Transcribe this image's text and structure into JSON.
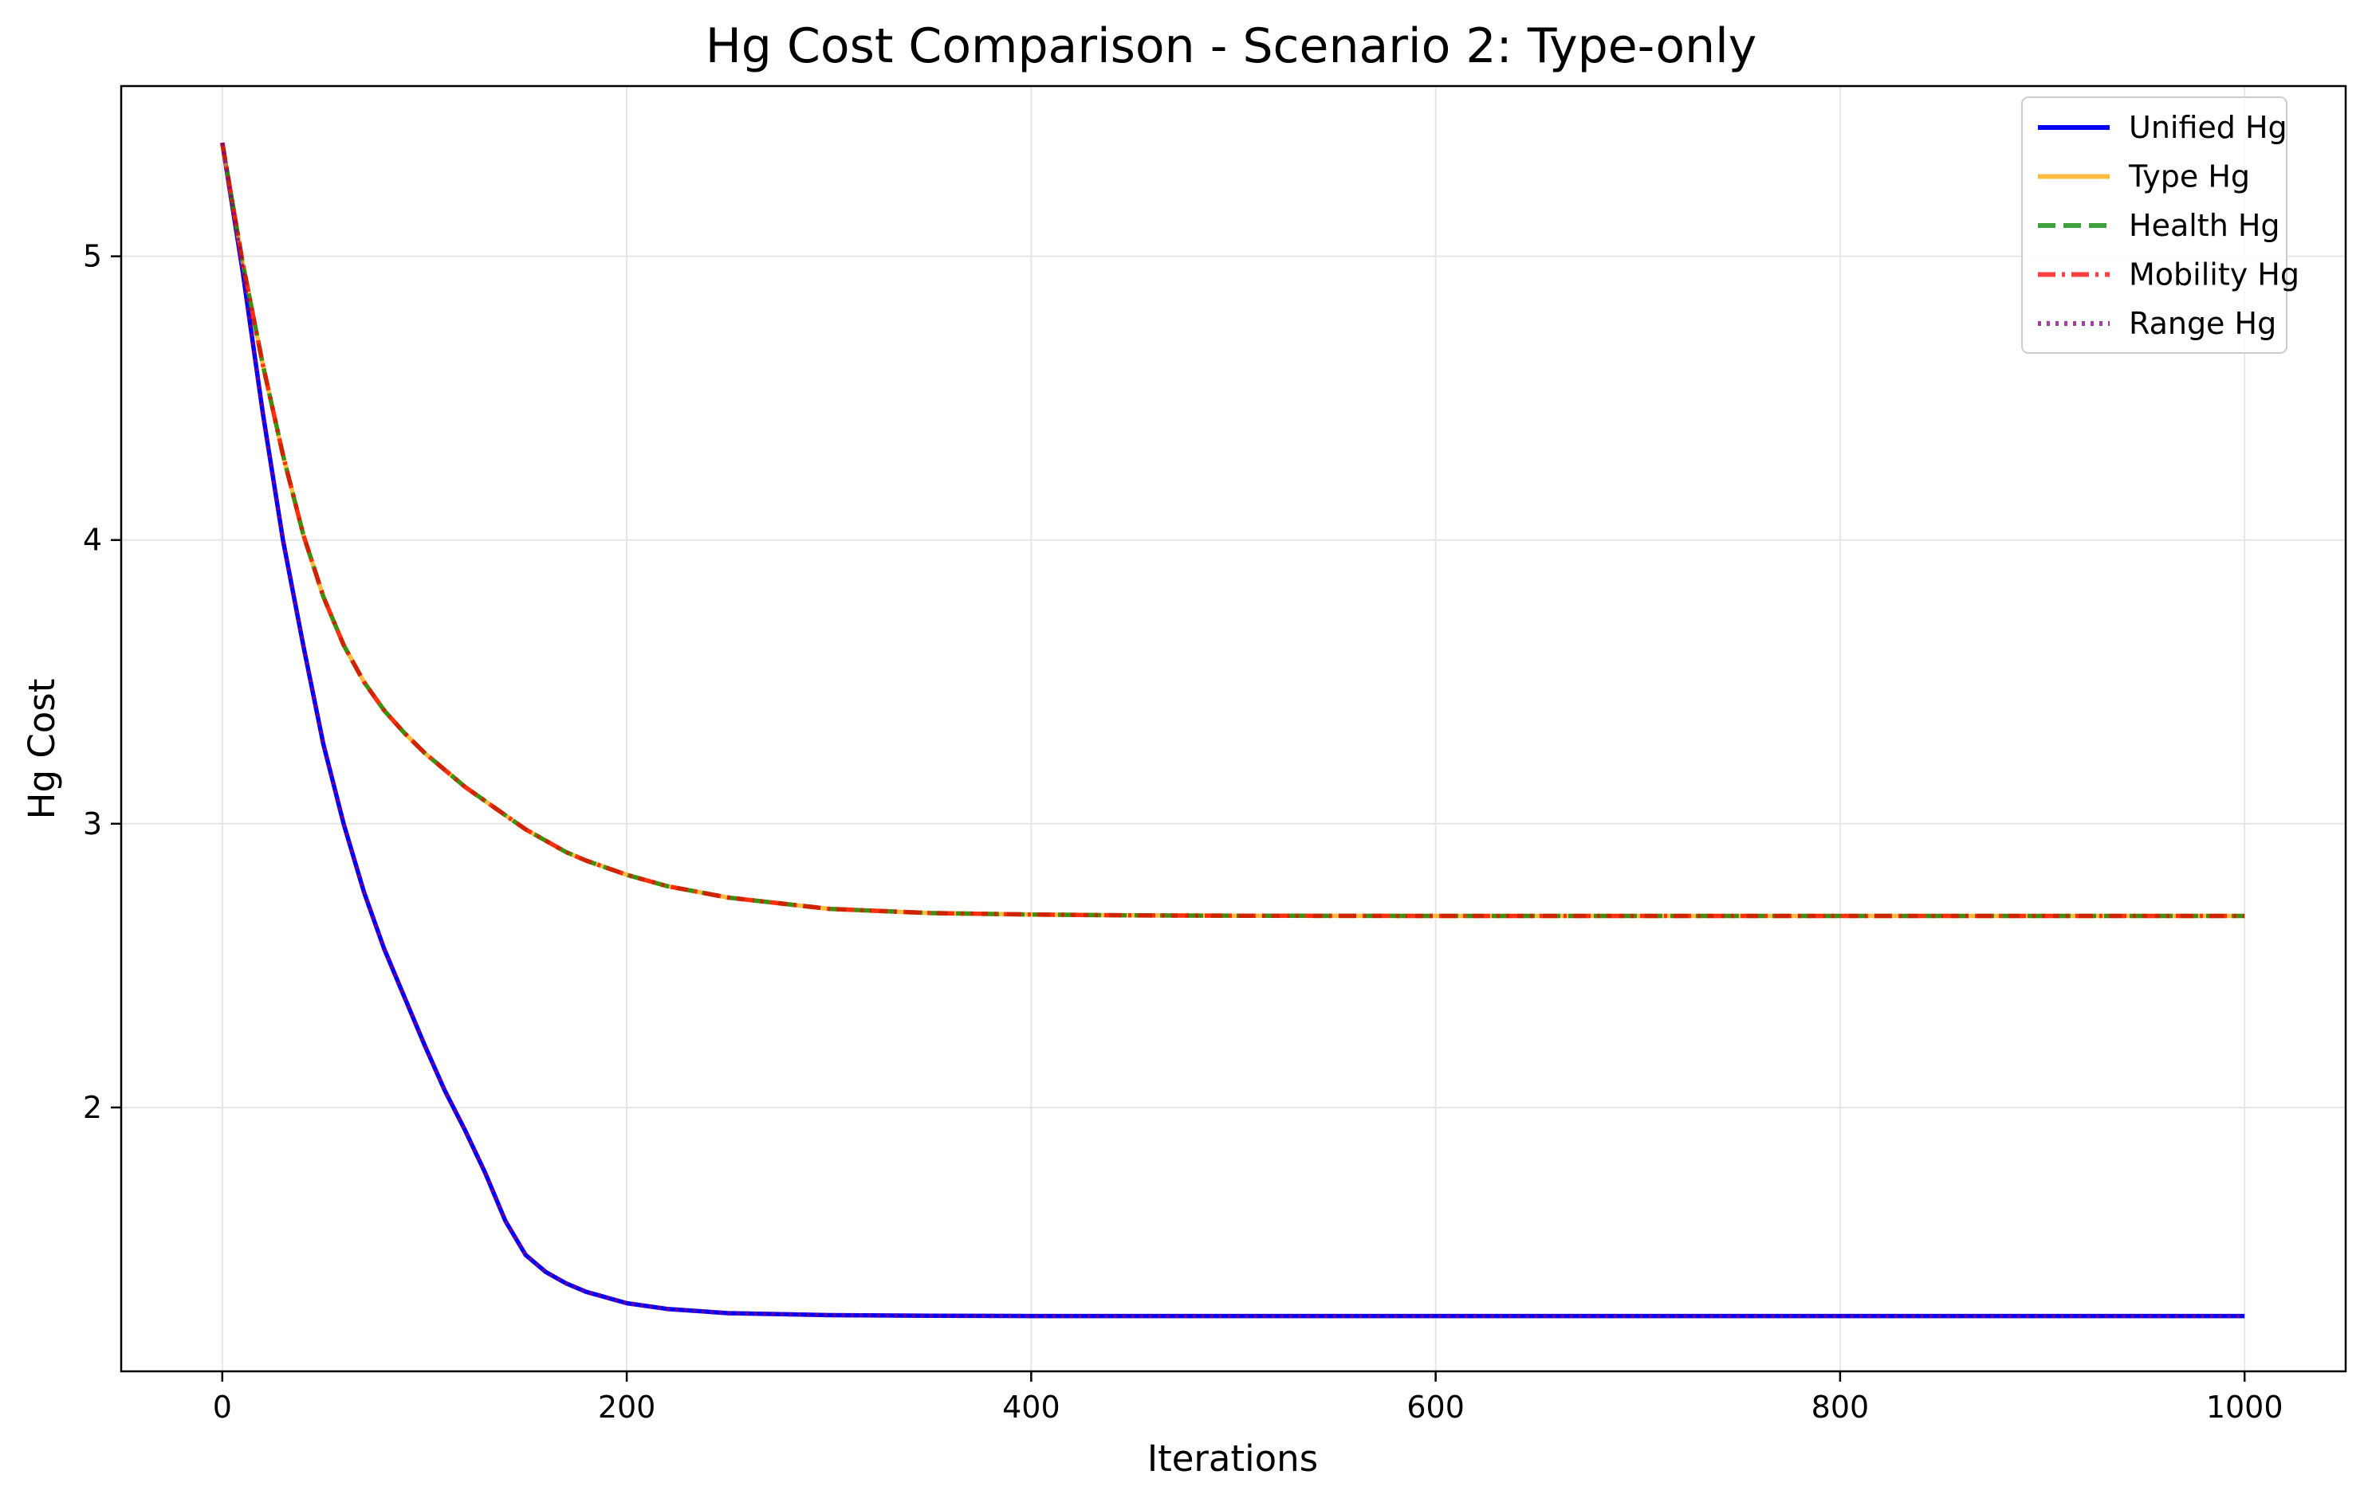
{
  "chart_data": {
    "type": "line",
    "title": "Hg Cost Comparison - Scenario 2: Type-only",
    "xlabel": "Iterations",
    "ylabel": "Hg Cost",
    "xlim": [
      -50,
      1050
    ],
    "ylim": [
      1.07,
      5.6
    ],
    "xticks": [
      0,
      200,
      400,
      600,
      800,
      1000
    ],
    "yticks": [
      2,
      3,
      4,
      5
    ],
    "grid": true,
    "legend_position": "top-right",
    "x": [
      0,
      10,
      20,
      30,
      40,
      50,
      60,
      70,
      80,
      90,
      100,
      110,
      120,
      130,
      140,
      150,
      160,
      170,
      180,
      200,
      220,
      250,
      300,
      350,
      400,
      450,
      500,
      600,
      700,
      800,
      900,
      1000
    ],
    "series": [
      {
        "name": "Unified Hg",
        "color": "#0000ff",
        "style": "solid",
        "values": [
          5.4,
          4.95,
          4.45,
          4.0,
          3.63,
          3.28,
          3.0,
          2.76,
          2.56,
          2.39,
          2.22,
          2.06,
          1.92,
          1.77,
          1.6,
          1.48,
          1.42,
          1.38,
          1.35,
          1.31,
          1.29,
          1.275,
          1.268,
          1.266,
          1.265,
          1.265,
          1.265,
          1.265,
          1.265,
          1.265,
          1.265,
          1.265
        ]
      },
      {
        "name": "Type Hg",
        "color": "#ffa500",
        "style": "solid",
        "values": [
          5.4,
          4.98,
          4.62,
          4.3,
          4.02,
          3.8,
          3.63,
          3.5,
          3.4,
          3.32,
          3.25,
          3.19,
          3.13,
          3.08,
          3.03,
          2.98,
          2.94,
          2.9,
          2.87,
          2.82,
          2.78,
          2.74,
          2.7,
          2.685,
          2.68,
          2.677,
          2.676,
          2.675,
          2.675,
          2.675,
          2.675,
          2.675
        ]
      },
      {
        "name": "Health Hg",
        "color": "#008000",
        "style": "dashed",
        "values": [
          5.4,
          4.98,
          4.62,
          4.3,
          4.02,
          3.8,
          3.63,
          3.5,
          3.4,
          3.32,
          3.25,
          3.19,
          3.13,
          3.08,
          3.03,
          2.98,
          2.94,
          2.9,
          2.87,
          2.82,
          2.78,
          2.74,
          2.7,
          2.685,
          2.68,
          2.677,
          2.676,
          2.675,
          2.675,
          2.675,
          2.675,
          2.675
        ]
      },
      {
        "name": "Mobility Hg",
        "color": "#ff0000",
        "style": "dashdot",
        "values": [
          5.4,
          4.98,
          4.62,
          4.3,
          4.02,
          3.8,
          3.63,
          3.5,
          3.4,
          3.32,
          3.25,
          3.19,
          3.13,
          3.08,
          3.03,
          2.98,
          2.94,
          2.9,
          2.87,
          2.82,
          2.78,
          2.74,
          2.7,
          2.685,
          2.68,
          2.677,
          2.676,
          2.675,
          2.675,
          2.675,
          2.675,
          2.675
        ]
      },
      {
        "name": "Range Hg",
        "color": "#800080",
        "style": "dotted",
        "values": [
          5.4,
          4.95,
          4.45,
          4.0,
          3.63,
          3.28,
          3.0,
          2.76,
          2.56,
          2.39,
          2.22,
          2.06,
          1.92,
          1.77,
          1.6,
          1.48,
          1.42,
          1.38,
          1.35,
          1.31,
          1.29,
          1.275,
          1.268,
          1.266,
          1.265,
          1.265,
          1.265,
          1.265,
          1.265,
          1.265,
          1.265,
          1.265
        ]
      }
    ]
  }
}
